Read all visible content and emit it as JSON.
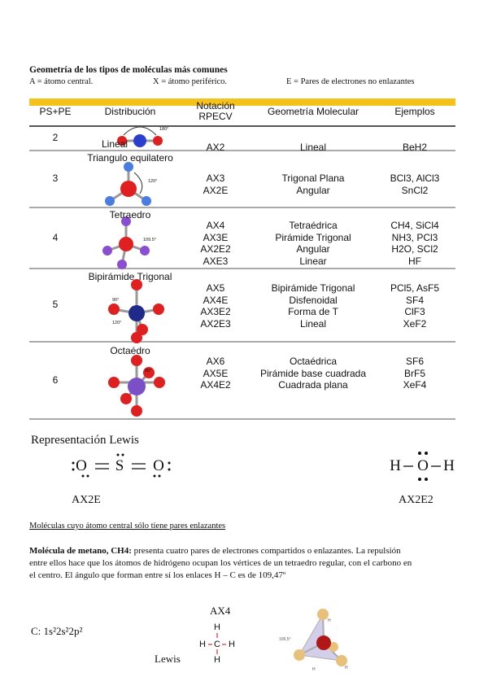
{
  "header": {
    "title": "Geometría de los tipos de moléculas más comunes",
    "legend": [
      "A = átomo central.",
      "X = átomo periférico.",
      "E = Pares de electrones no enlazantes"
    ]
  },
  "table": {
    "columns": [
      "PS+PE",
      "Distribución",
      "Notación RPECV",
      "Geometría Molecular",
      "Ejemplos"
    ],
    "rows": [
      {
        "pe": "2",
        "distribution": "Lineal",
        "angles": [
          "180°"
        ],
        "notation": [
          "AX2"
        ],
        "geometry": [
          "Lineal"
        ],
        "examples": [
          "BeH2"
        ]
      },
      {
        "pe": "3",
        "distribution": "Triangulo equilatero",
        "angles": [
          "120°"
        ],
        "notation": [
          "AX3",
          "AX2E"
        ],
        "geometry": [
          "Trigonal Plana",
          "Angular"
        ],
        "examples": [
          "BCl3, AlCl3",
          "SnCl2"
        ]
      },
      {
        "pe": "4",
        "distribution": "Tetraedro",
        "angles": [
          "109.5°"
        ],
        "notation": [
          "AX4",
          "AX3E",
          "AX2E2",
          "AXE3"
        ],
        "geometry": [
          "Tetraédrica",
          "Pirámide Trigonal",
          "Angular",
          "Linear"
        ],
        "examples": [
          "CH4, SiCl4",
          "NH3, PCl3",
          "H2O, SCl2",
          "HF"
        ]
      },
      {
        "pe": "5",
        "distribution": "Bipirámide Trigonal",
        "angles": [
          "90°",
          "120°"
        ],
        "notation": [
          "AX5",
          "AX4E",
          "AX3E2",
          "AX2E3"
        ],
        "geometry": [
          "Bipirámide Trigonal",
          "Disfenoidal",
          "Forma de T",
          "Lineal"
        ],
        "examples": [
          "PCl5, AsF5",
          "SF4",
          "ClF3",
          "XeF2"
        ]
      },
      {
        "pe": "6",
        "distribution": "Octaédro",
        "angles": [
          "90°"
        ],
        "notation": [
          "AX6",
          "AX5E",
          "AX4E2"
        ],
        "geometry": [
          "Octaédrica",
          "Pirámide base cuadrada",
          "Cuadrada plana"
        ],
        "examples": [
          "SF6",
          "BrF5",
          "XeF4"
        ]
      }
    ]
  },
  "lewis": {
    "title": "Representación Lewis",
    "structures": [
      {
        "atoms": [
          "O",
          "S",
          "O"
        ],
        "notation": "AX2E"
      },
      {
        "atoms": [
          "H",
          "O",
          "H"
        ],
        "notation": "AX2E2"
      }
    ]
  },
  "methane": {
    "subtitle": "Moléculas cuyo átomo central sólo tiene pares enlazantes",
    "lead": "Molécula de metano, CH4:",
    "text": "presenta cuatro pares de electrones compartidos o enlazantes. La repulsión entre ellos hace que los átomos de hidrógeno ocupan los vértices de un tetraedro regular, con el carbono en el centro. El ángulo que forman entre sí los enlaces H – C es de 109,47º",
    "notation": "AX4",
    "configuration": "C: 1s²2s²2p²",
    "lewis_label": "Lewis",
    "lewis_atoms": [
      "H",
      "H",
      "C",
      "H",
      "H"
    ],
    "model_labels": [
      "109,5°",
      "H",
      "H",
      "H"
    ]
  }
}
